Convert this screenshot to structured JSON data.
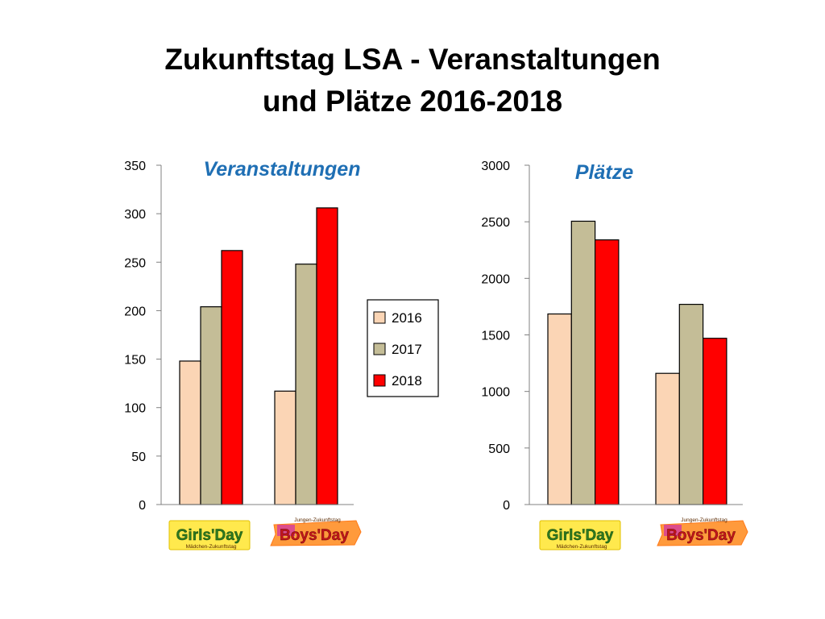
{
  "slide": {
    "title_line1": "Zukunftstag LSA  - Veranstaltungen",
    "title_line2": "und Plätze 2016-2018"
  },
  "colors": {
    "series": [
      "#fbd5b5",
      "#c4bd97",
      "#ff0000"
    ],
    "chart_title": "#1f6fb4",
    "axis": "#808080"
  },
  "logos": [
    {
      "icon": "girls-day-logo",
      "main": "Girls'Day",
      "sub": "Mädchen-Zukunftstag"
    },
    {
      "icon": "boys-day-logo",
      "main": "Boys'Day",
      "sub": "Jungen-Zukunftstag"
    }
  ],
  "chart_data": [
    {
      "type": "bar",
      "title": "Veranstaltungen",
      "categories": [
        "Girls'Day",
        "Boys'Day"
      ],
      "series": [
        {
          "name": "2016",
          "values": [
            148,
            117
          ]
        },
        {
          "name": "2017",
          "values": [
            204,
            248
          ]
        },
        {
          "name": "2018",
          "values": [
            262,
            306
          ]
        }
      ],
      "ylim": [
        0,
        350
      ],
      "yticks": [
        0,
        50,
        100,
        150,
        200,
        250,
        300,
        350
      ],
      "legend": "right",
      "grid": false
    },
    {
      "type": "bar",
      "title": "Plätze",
      "categories": [
        "Girls'Day",
        "Boys'Day"
      ],
      "series": [
        {
          "name": "2016",
          "values": [
            1685,
            1160
          ]
        },
        {
          "name": "2017",
          "values": [
            2505,
            1770
          ]
        },
        {
          "name": "2018",
          "values": [
            2340,
            1470
          ]
        }
      ],
      "ylim": [
        0,
        3000
      ],
      "yticks": [
        0,
        500,
        1000,
        1500,
        2000,
        2500,
        3000
      ],
      "legend": "none",
      "grid": false
    }
  ]
}
